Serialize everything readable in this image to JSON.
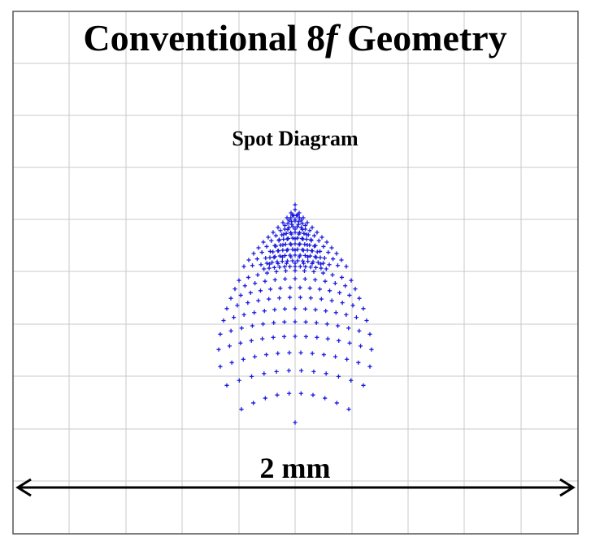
{
  "title": {
    "main": "Conventional 8",
    "italic": "f",
    "tail": " Geometry"
  },
  "subtitle": "Spot Diagram",
  "scale_bar": {
    "label": "2 mm"
  },
  "colors": {
    "spot": "#1a1adf",
    "grid": "#c8c8c8",
    "frame": "#555555",
    "arrow": "#000000"
  },
  "spot_marker": "+",
  "spot_diagram": {
    "shape": "arrowhead/teardrop spot pattern pointing upward",
    "units": "mm",
    "scale_bar_length_mm": 2
  }
}
